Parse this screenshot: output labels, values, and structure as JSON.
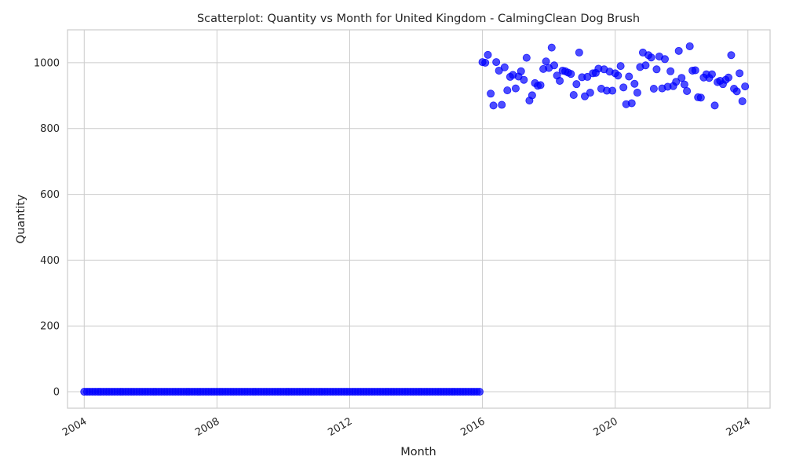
{
  "chart_data": {
    "type": "scatter",
    "title": "Scatterplot: Quantity vs Month for United Kingdom - CalmingClean Dog Brush",
    "xlabel": "Month",
    "ylabel": "Quantity",
    "x_type": "date",
    "xlim": [
      "2003-07-01",
      "2024-09-01"
    ],
    "ylim": [
      -50,
      1100
    ],
    "x_ticks": [
      "2004",
      "2008",
      "2012",
      "2016",
      "2020",
      "2024"
    ],
    "y_ticks": [
      0,
      200,
      400,
      600,
      800,
      1000
    ],
    "grid": true,
    "marker_color": "#0000ff",
    "series": [
      {
        "zero_period": {
          "start": "2004-01",
          "end": "2015-12",
          "value": 0
        },
        "points": [
          [
            "2016-01",
            1002
          ],
          [
            "2016-02",
            1000
          ],
          [
            "2016-03",
            1024
          ],
          [
            "2016-04",
            906
          ],
          [
            "2016-05",
            870
          ],
          [
            "2016-06",
            1002
          ],
          [
            "2016-07",
            976
          ],
          [
            "2016-08",
            872
          ],
          [
            "2016-09",
            986
          ],
          [
            "2016-10",
            916
          ],
          [
            "2016-11",
            957
          ],
          [
            "2016-12",
            963
          ],
          [
            "2017-01",
            922
          ],
          [
            "2017-02",
            958
          ],
          [
            "2017-03",
            974
          ],
          [
            "2017-04",
            948
          ],
          [
            "2017-05",
            1015
          ],
          [
            "2017-06",
            885
          ],
          [
            "2017-07",
            901
          ],
          [
            "2017-08",
            938
          ],
          [
            "2017-09",
            930
          ],
          [
            "2017-10",
            932
          ],
          [
            "2017-11",
            981
          ],
          [
            "2017-12",
            1004
          ],
          [
            "2018-01",
            984
          ],
          [
            "2018-02",
            1046
          ],
          [
            "2018-03",
            992
          ],
          [
            "2018-04",
            961
          ],
          [
            "2018-05",
            945
          ],
          [
            "2018-06",
            976
          ],
          [
            "2018-07",
            974
          ],
          [
            "2018-08",
            970
          ],
          [
            "2018-09",
            966
          ],
          [
            "2018-10",
            902
          ],
          [
            "2018-11",
            935
          ],
          [
            "2018-12",
            1031
          ],
          [
            "2019-01",
            956
          ],
          [
            "2019-02",
            898
          ],
          [
            "2019-03",
            957
          ],
          [
            "2019-04",
            909
          ],
          [
            "2019-05",
            968
          ],
          [
            "2019-06",
            969
          ],
          [
            "2019-07",
            982
          ],
          [
            "2019-08",
            921
          ],
          [
            "2019-09",
            980
          ],
          [
            "2019-10",
            915
          ],
          [
            "2019-11",
            973
          ],
          [
            "2019-12",
            915
          ],
          [
            "2020-01",
            968
          ],
          [
            "2020-02",
            961
          ],
          [
            "2020-03",
            990
          ],
          [
            "2020-04",
            925
          ],
          [
            "2020-05",
            874
          ],
          [
            "2020-06",
            958
          ],
          [
            "2020-07",
            877
          ],
          [
            "2020-08",
            936
          ],
          [
            "2020-09",
            909
          ],
          [
            "2020-10",
            987
          ],
          [
            "2020-11",
            1031
          ],
          [
            "2020-12",
            992
          ],
          [
            "2021-01",
            1023
          ],
          [
            "2021-02",
            1016
          ],
          [
            "2021-03",
            921
          ],
          [
            "2021-04",
            980
          ],
          [
            "2021-05",
            1019
          ],
          [
            "2021-06",
            922
          ],
          [
            "2021-07",
            1011
          ],
          [
            "2021-08",
            927
          ],
          [
            "2021-09",
            974
          ],
          [
            "2021-10",
            929
          ],
          [
            "2021-11",
            942
          ],
          [
            "2021-12",
            1036
          ],
          [
            "2022-01",
            954
          ],
          [
            "2022-02",
            934
          ],
          [
            "2022-03",
            914
          ],
          [
            "2022-04",
            1050
          ],
          [
            "2022-05",
            976
          ],
          [
            "2022-06",
            977
          ],
          [
            "2022-07",
            895
          ],
          [
            "2022-08",
            894
          ],
          [
            "2022-09",
            955
          ],
          [
            "2022-10",
            965
          ],
          [
            "2022-11",
            954
          ],
          [
            "2022-12",
            965
          ],
          [
            "2023-01",
            870
          ],
          [
            "2023-02",
            941
          ],
          [
            "2023-03",
            945
          ],
          [
            "2023-04",
            935
          ],
          [
            "2023-05",
            948
          ],
          [
            "2023-06",
            955
          ],
          [
            "2023-07",
            1023
          ],
          [
            "2023-08",
            921
          ],
          [
            "2023-09",
            913
          ],
          [
            "2023-10",
            968
          ],
          [
            "2023-11",
            883
          ],
          [
            "2023-12",
            928
          ]
        ]
      }
    ]
  }
}
